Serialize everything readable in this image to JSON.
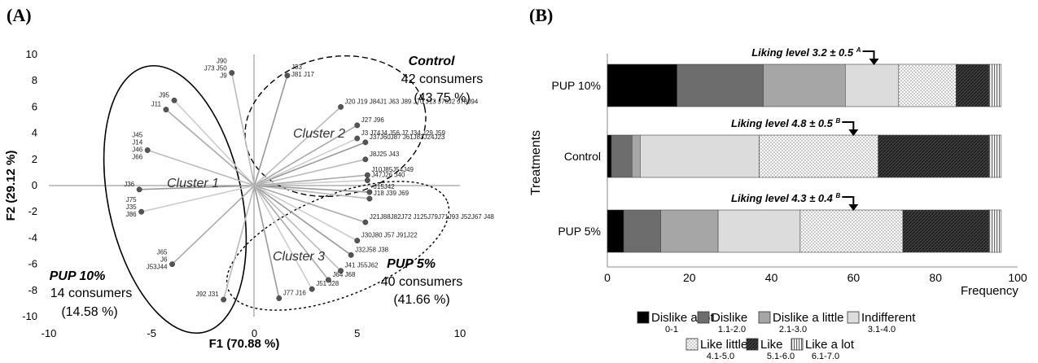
{
  "panels": {
    "a_label": "(A)",
    "b_label": "(B)"
  },
  "chart_data": [
    {
      "type": "scatter",
      "panel": "(A)",
      "xlabel": "F1 (70.88 %)",
      "ylabel": "F2 (29.12 %)",
      "xlim": [
        -10,
        10
      ],
      "ylim": [
        -10,
        10
      ],
      "x_ticks": [
        "-10",
        "-5",
        "0",
        "5",
        "10"
      ],
      "y_ticks": [
        "10",
        "8",
        "6",
        "4",
        "2",
        "0",
        "-2",
        "-4",
        "-6",
        "-8",
        "-10"
      ],
      "points": [
        {
          "x": -1.1,
          "y": 8.6,
          "label": "J90\nJ73 J50\nJ9"
        },
        {
          "x": 1.6,
          "y": 8.4,
          "label": "J33\nJ81 J17"
        },
        {
          "x": -3.9,
          "y": 6.5,
          "label": "J95"
        },
        {
          "x": -4.3,
          "y": 5.8,
          "label": "J11"
        },
        {
          "x": -5.2,
          "y": 2.7,
          "label": "J45\nJ14\nJ46\nJ66"
        },
        {
          "x": -5.6,
          "y": -0.3,
          "label": "J36"
        },
        {
          "x": -5.5,
          "y": -2.0,
          "label": "J75\nJ35\nJ86"
        },
        {
          "x": -4.0,
          "y": -6.0,
          "label": "J65\nJ6\nJ53J44"
        },
        {
          "x": -1.5,
          "y": -8.7,
          "label": "J92 J31"
        },
        {
          "x": 1.2,
          "y": -8.6,
          "label": "J77 J16"
        },
        {
          "x": 2.8,
          "y": -7.9,
          "label": "J51 J28"
        },
        {
          "x": 3.6,
          "y": -7.2,
          "label": "J64 J68"
        },
        {
          "x": 4.2,
          "y": -6.5,
          "label": "J41 J55J62"
        },
        {
          "x": 4.7,
          "y": -5.3,
          "label": "J32J58 J38"
        },
        {
          "x": 5.0,
          "y": -4.2,
          "label": "J30J80 J57 J91J22"
        },
        {
          "x": 5.4,
          "y": -2.8,
          "label": "J21J88J82J72 J125J79J71J93 J52J67 J48"
        },
        {
          "x": 5.6,
          "y": -1.0,
          "label": "J18 J39 J69"
        },
        {
          "x": 5.6,
          "y": -0.5,
          "label": "J15J42"
        },
        {
          "x": 5.5,
          "y": 0.4,
          "label": "J47J26 J40"
        },
        {
          "x": 5.5,
          "y": 0.8,
          "label": "J10J85J54J49"
        },
        {
          "x": 5.4,
          "y": 2.0,
          "label": "J8J25 J43"
        },
        {
          "x": 5.4,
          "y": 3.3,
          "label": "J37J60J87 J61J83J24J23"
        },
        {
          "x": 5.0,
          "y": 3.6,
          "label": "J3 J74J4 J56 J7 J34 J29 J59"
        },
        {
          "x": 5.0,
          "y": 4.6,
          "label": "J27 J96"
        },
        {
          "x": 4.2,
          "y": 6.0,
          "label": "J20 J19 J84J1 J63 J89 J70 J13 J76J2 J78J94"
        }
      ],
      "annotations": {
        "cluster1": "Cluster 1",
        "cluster2": "Cluster 2",
        "cluster3": "Cluster 3",
        "control_title": "Control",
        "control_count": "42 consumers",
        "control_pct": "(43.75 %)",
        "pup10_title": "PUP 10%",
        "pup10_count": "14 consumers",
        "pup10_pct": "(14.58 %)",
        "pup5_title": "PUP 5%",
        "pup5_count": "40 consumers",
        "pup5_pct": "(41.66 %)"
      },
      "grid": false
    },
    {
      "type": "bar",
      "orientation": "horizontal",
      "stacked": true,
      "panel": "(B)",
      "categories": [
        "PUP 10%",
        "Control",
        "PUP 5%"
      ],
      "xlabel": "Frequency",
      "ylabel": "Treatments",
      "xlim": [
        0,
        100
      ],
      "x_ticks": [
        "0",
        "20",
        "40",
        "60",
        "80",
        "100"
      ],
      "series": [
        {
          "name": "Dislike a lot",
          "range": "0-1",
          "values": [
            17,
            1,
            4
          ]
        },
        {
          "name": "Dislike",
          "range": "1.1-2.0",
          "values": [
            21,
            5,
            9
          ]
        },
        {
          "name": "Dislike a little",
          "range": "2.1-3.0",
          "values": [
            20,
            2,
            14
          ]
        },
        {
          "name": "Indifferent",
          "range": "3.1-4.0",
          "values": [
            13,
            29,
            20
          ]
        },
        {
          "name": "Like little",
          "range": "4.1-5.0",
          "values": [
            14,
            29,
            25
          ]
        },
        {
          "name": "Like",
          "range": "5.1-6.0",
          "values": [
            8,
            27,
            21
          ]
        },
        {
          "name": "Like a lot",
          "range": "6.1-7.0",
          "values": [
            3,
            3,
            3
          ]
        }
      ],
      "liking": [
        {
          "text": "Liking level 3.2 ± 0.5",
          "sup": "A",
          "marker": 63
        },
        {
          "text": "Liking level 4.8 ± 0.5",
          "sup": "B",
          "marker": 58
        },
        {
          "text": "Liking level 4.3 ± 0.4",
          "sup": "B",
          "marker": 58
        }
      ],
      "legend_position": "bottom",
      "grid": false
    }
  ]
}
